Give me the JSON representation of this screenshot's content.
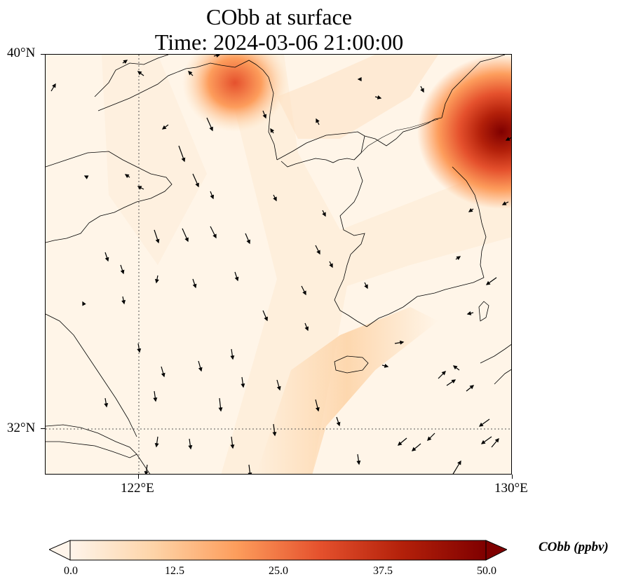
{
  "title": {
    "line1": "CObb at surface",
    "line2": "Time: 2024-03-06 21:00:00"
  },
  "map": {
    "lat_labels": [
      "40°N",
      "32°N"
    ],
    "lon_labels": [
      "122°E",
      "130°E"
    ],
    "extent": {
      "lon_min": 120,
      "lon_max": 130,
      "lat_min": 31,
      "lat_max": 40
    },
    "gridlines": {
      "lons": [
        122
      ],
      "lats": [
        32
      ]
    },
    "field_variable": "CObb",
    "plumes": [
      {
        "name": "northeast-plume",
        "lon": 129.8,
        "lat": 38.6,
        "peak": 50
      },
      {
        "name": "north-plume",
        "lon": 124.0,
        "lat": 39.8,
        "peak": 32
      },
      {
        "name": "south-band",
        "lon": 125.2,
        "lat": 31.8,
        "peak": 14
      }
    ]
  },
  "colorbar": {
    "label": "CObb (ppbv)",
    "min": 0,
    "max": 50,
    "ticks": [
      "0.0",
      "12.5",
      "25.0",
      "37.5",
      "50.0"
    ],
    "colors": [
      "#fff5eb",
      "#fdd4a8",
      "#fd9d5c",
      "#e5512d",
      "#b3200a",
      "#7f0000"
    ],
    "extend": "both"
  }
}
